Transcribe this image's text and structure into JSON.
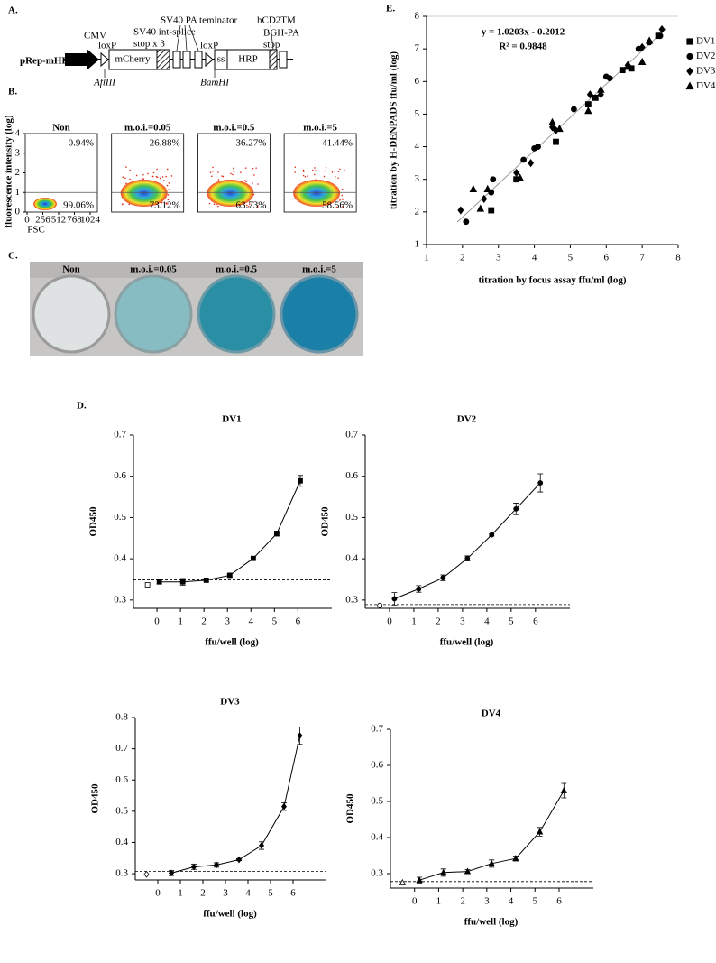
{
  "panel_labels": [
    "A.",
    "B.",
    "C.",
    "D.",
    "E."
  ],
  "plasmid": {
    "name": "pRep-mHRP",
    "cmv": "CMV",
    "loxp1": "loxP",
    "mcherry": "mCherry",
    "sv40_splice": "SV40 int-splice",
    "stop3": "stop x 3",
    "sv40_pa": "SV40 PA teminator",
    "loxp2": "loxP",
    "ss": "ss",
    "hrp": "HRP",
    "hcd2tm": "hCD2TM",
    "bgh": "BGH-PA",
    "stop": "stop",
    "afl": "AflIII",
    "bam": "BamHI"
  },
  "flow": {
    "ylabel": "fluorescence intensity (log)",
    "xlabel": "FSC",
    "yticks": [
      0,
      1,
      2,
      3,
      4
    ],
    "xticks": [
      0,
      256,
      512,
      768,
      1024
    ],
    "panels": [
      {
        "title": "Non",
        "upper": "0.94%",
        "lower": "99.06%"
      },
      {
        "title": "m.o.i.=0.05",
        "upper": "26.88%",
        "lower": "73.12%"
      },
      {
        "title": "m.o.i.=0.5",
        "upper": "36.27%",
        "lower": "63.73%"
      },
      {
        "title": "m.o.i.=5",
        "upper": "41.44%",
        "lower": "58.56%"
      }
    ]
  },
  "plate": {
    "labels": [
      "Non",
      "m.o.i.=0.05",
      "m.o.i.=0.5",
      "m.o.i.=5"
    ]
  },
  "chart_data": [
    {
      "type": "scatter",
      "xlabel": "titration by focus assay  ffu/ml (log)",
      "ylabel": "titration by H-DENPADS  ffu/ml (log)",
      "annotations": [
        "y = 1.0203x - 0.2012",
        "R² = 0.9848"
      ],
      "trendline": {
        "slope": 1.0203,
        "intercept": -0.2012
      },
      "xlim": [
        1,
        8
      ],
      "ylim": [
        1,
        8
      ],
      "xticks": [
        1,
        2,
        3,
        4,
        5,
        6,
        7,
        8
      ],
      "yticks": [
        1,
        2,
        3,
        4,
        5,
        6,
        7,
        8
      ],
      "series": [
        {
          "name": "DV1",
          "marker": "square",
          "color": "#000000",
          "x": [
            2.8,
            3.5,
            4.6,
            5.5,
            5.7,
            6.45,
            6.7,
            7.45
          ],
          "values": [
            2.05,
            3.0,
            4.15,
            5.3,
            5.5,
            6.35,
            6.4,
            7.4
          ]
        },
        {
          "name": "DV2",
          "marker": "circle",
          "color": "#000000",
          "x": [
            2.1,
            2.8,
            2.85,
            3.7,
            4.0,
            4.1,
            5.1,
            6.0,
            6.1,
            6.9,
            7.2,
            7.5
          ],
          "values": [
            1.7,
            2.6,
            3.0,
            3.6,
            3.95,
            4.0,
            5.15,
            6.15,
            6.1,
            7.0,
            7.2,
            7.4
          ]
        },
        {
          "name": "DV3",
          "marker": "diamond",
          "color": "#000000",
          "x": [
            1.95,
            2.6,
            3.5,
            3.9,
            4.5,
            4.6,
            5.55,
            5.85,
            6.6,
            7.0,
            7.55
          ],
          "values": [
            2.05,
            2.4,
            3.2,
            3.5,
            4.6,
            4.5,
            5.6,
            5.6,
            6.5,
            7.05,
            7.6
          ]
        },
        {
          "name": "DV4",
          "marker": "triangle",
          "color": "#000000",
          "x": [
            2.3,
            2.5,
            2.7,
            3.6,
            4.5,
            4.7,
            5.5,
            5.85,
            6.6,
            7.0,
            7.2
          ],
          "values": [
            2.7,
            2.1,
            2.7,
            3.05,
            4.75,
            4.55,
            5.1,
            5.75,
            6.45,
            6.6,
            7.25
          ]
        }
      ]
    },
    {
      "type": "line",
      "title": "DV1",
      "xlabel": "ffu/well (log)",
      "ylabel": "OD450",
      "marker": "square",
      "color": "#000000",
      "x": [
        0.1,
        1.1,
        2.1,
        3.1,
        4.1,
        5.1,
        6.1
      ],
      "values": [
        0.344,
        0.344,
        0.348,
        0.36,
        0.401,
        0.461,
        0.589
      ],
      "errors": [
        0.005,
        0.008,
        0.003,
        0.004,
        0.003,
        0.006,
        0.013
      ],
      "cutoff": 0.349,
      "control": {
        "x": -0.4,
        "value": 0.337
      },
      "xlim": [
        -1,
        6.6
      ],
      "ylim": [
        0.28,
        0.7
      ],
      "xticks": [
        0,
        1,
        2,
        3,
        4,
        5,
        6
      ],
      "yticks": [
        0.3,
        0.4,
        0.5,
        0.6,
        0.7
      ]
    },
    {
      "type": "line",
      "title": "DV2",
      "xlabel": "ffu/well (log)",
      "ylabel": "OD450",
      "marker": "circle",
      "color": "#000000",
      "x": [
        0.2,
        1.2,
        2.2,
        3.2,
        4.2,
        5.2,
        6.2
      ],
      "values": [
        0.303,
        0.327,
        0.354,
        0.401,
        0.458,
        0.521,
        0.584
      ],
      "errors": [
        0.015,
        0.008,
        0.007,
        0.006,
        0.003,
        0.014,
        0.022
      ],
      "cutoff": 0.289,
      "control": {
        "x": -0.4,
        "value": 0.287
      },
      "xlim": [
        -1,
        6.6
      ],
      "ylim": [
        0.28,
        0.7
      ],
      "xticks": [
        0,
        1,
        2,
        3,
        4,
        5,
        6
      ],
      "yticks": [
        0.3,
        0.4,
        0.5,
        0.6,
        0.7
      ]
    },
    {
      "type": "line",
      "title": "DV3",
      "xlabel": "ffu/well (log)",
      "ylabel": "OD450",
      "marker": "diamond",
      "color": "#000000",
      "x": [
        0.6,
        1.6,
        2.6,
        3.6,
        4.6,
        5.6,
        6.3
      ],
      "values": [
        0.302,
        0.322,
        0.328,
        0.345,
        0.39,
        0.515,
        0.742
      ],
      "errors": [
        0.008,
        0.008,
        0.007,
        0.003,
        0.012,
        0.012,
        0.028
      ],
      "cutoff": 0.307,
      "control": {
        "x": -0.5,
        "value": 0.298
      },
      "xlim": [
        -1,
        6.6
      ],
      "ylim": [
        0.28,
        0.8
      ],
      "xticks": [
        0,
        1,
        2,
        3,
        4,
        5,
        6
      ],
      "yticks": [
        0.3,
        0.4,
        0.5,
        0.6,
        0.7,
        0.8
      ]
    },
    {
      "type": "line",
      "title": "DV4",
      "xlabel": "ffu/well (log)",
      "ylabel": "OD450",
      "marker": "triangle",
      "color": "#000000",
      "x": [
        0.2,
        1.2,
        2.2,
        3.2,
        4.2,
        5.2,
        6.2
      ],
      "values": [
        0.282,
        0.303,
        0.306,
        0.328,
        0.342,
        0.416,
        0.53
      ],
      "errors": [
        0.008,
        0.01,
        0.005,
        0.01,
        0.007,
        0.012,
        0.02
      ],
      "cutoff": 0.278,
      "control": {
        "x": -0.5,
        "value": 0.275
      },
      "xlim": [
        -1,
        6.6
      ],
      "ylim": [
        0.26,
        0.7
      ],
      "xticks": [
        0,
        1,
        2,
        3,
        4,
        5,
        6
      ],
      "yticks": [
        0.3,
        0.4,
        0.5,
        0.6,
        0.7
      ]
    }
  ]
}
